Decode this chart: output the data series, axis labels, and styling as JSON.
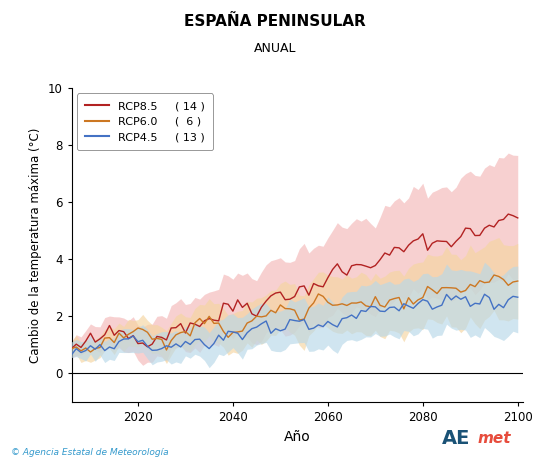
{
  "title": "ESPAÑA PENINSULAR",
  "subtitle": "ANUAL",
  "xlabel": "Año",
  "ylabel": "Cambio de la temperatura máxima (°C)",
  "xlim": [
    2006,
    2101
  ],
  "ylim": [
    -1,
    10
  ],
  "yticks": [
    0,
    2,
    4,
    6,
    8,
    10
  ],
  "xticks": [
    2020,
    2040,
    2060,
    2080,
    2100
  ],
  "year_start": 2006,
  "year_end": 2100,
  "rcp85_color": "#b22222",
  "rcp60_color": "#cc7722",
  "rcp45_color": "#4472c4",
  "rcp85_fill": "#f4b8b8",
  "rcp60_fill": "#f5d5a0",
  "rcp45_fill": "#b8d8e8",
  "legend_labels": [
    "RCP8.5",
    "RCP6.0",
    "RCP4.5"
  ],
  "legend_counts": [
    "( 14 )",
    "(  6 )",
    "( 13 )"
  ],
  "footer_text": "© Agencia Estatal de Meteorología",
  "background_color": "#ffffff",
  "plot_bg_color": "#ffffff"
}
